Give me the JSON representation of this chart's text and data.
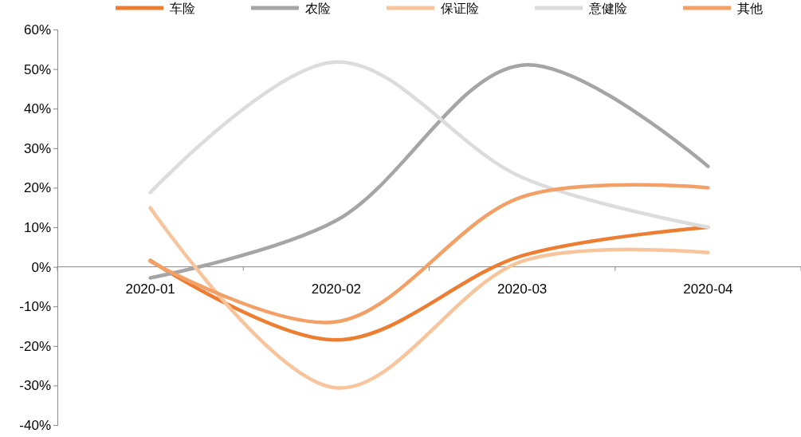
{
  "chart_data": {
    "type": "line",
    "categories": [
      "2020-01",
      "2020-02",
      "2020-03",
      "2020-04"
    ],
    "series": [
      {
        "name": "车险",
        "color": "#ed7d31",
        "values": [
          1.6,
          -18.5,
          2.8,
          10
        ]
      },
      {
        "name": "农险",
        "color": "#a5a5a5",
        "values": [
          -2.8,
          11.7,
          51,
          25.4
        ]
      },
      {
        "name": "保证险",
        "color": "#f8c49c",
        "values": [
          14.9,
          -30.6,
          1.4,
          3.6
        ]
      },
      {
        "name": "意健险",
        "color": "#dcdcdc",
        "values": [
          18.8,
          51.8,
          22.6,
          10
        ]
      },
      {
        "name": "其他",
        "color": "#f3a067",
        "values": [
          1.4,
          -13.9,
          17.7,
          20
        ]
      }
    ],
    "ylim": [
      -40,
      60
    ],
    "yticks": [
      {
        "value": -40,
        "label": "-40%"
      },
      {
        "value": -30,
        "label": "-30%"
      },
      {
        "value": -20,
        "label": "-20%"
      },
      {
        "value": -10,
        "label": "-10%"
      },
      {
        "value": 0,
        "label": "0%"
      },
      {
        "value": 10,
        "label": "10%"
      },
      {
        "value": 20,
        "label": "20%"
      },
      {
        "value": 30,
        "label": "30%"
      },
      {
        "value": 40,
        "label": "40%"
      },
      {
        "value": 50,
        "label": "50%"
      },
      {
        "value": 60,
        "label": "60%"
      }
    ],
    "grid": false,
    "legend": "top",
    "marker": "none",
    "line_style": "solid"
  }
}
